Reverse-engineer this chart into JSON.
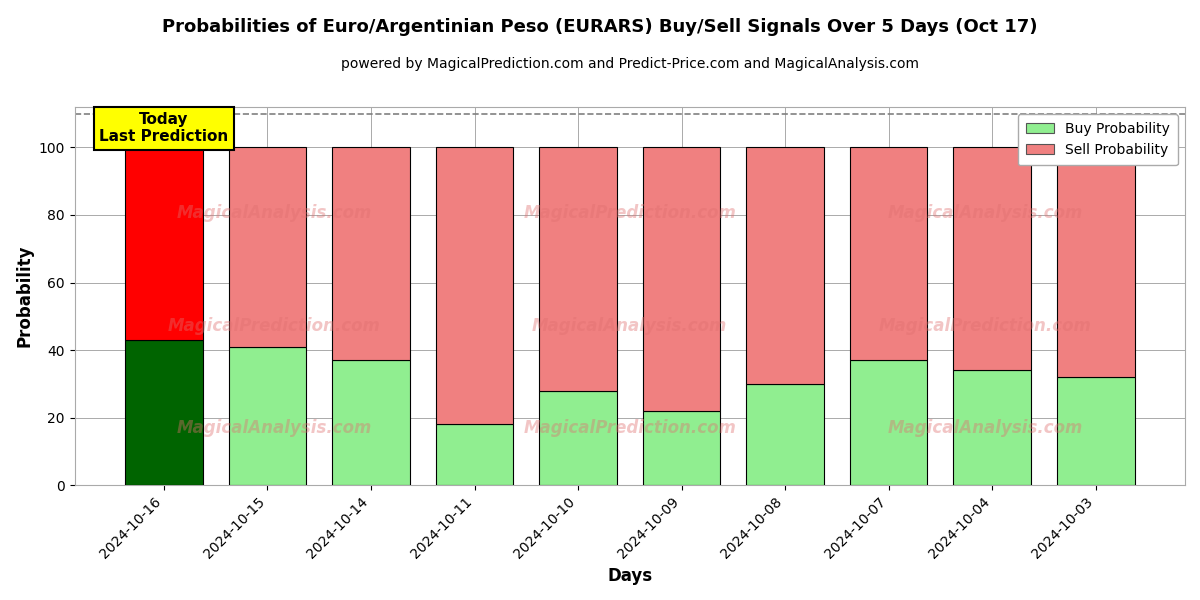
{
  "title": "Probabilities of Euro/Argentinian Peso (EURARS) Buy/Sell Signals Over 5 Days (Oct 17)",
  "subtitle": "powered by MagicalPrediction.com and Predict-Price.com and MagicalAnalysis.com",
  "xlabel": "Days",
  "ylabel": "Probability",
  "dates": [
    "2024-10-16",
    "2024-10-15",
    "2024-10-14",
    "2024-10-11",
    "2024-10-10",
    "2024-10-09",
    "2024-10-08",
    "2024-10-07",
    "2024-10-04",
    "2024-10-03"
  ],
  "buy_values": [
    43,
    41,
    37,
    18,
    28,
    22,
    30,
    37,
    34,
    32
  ],
  "sell_values": [
    57,
    59,
    63,
    82,
    72,
    78,
    70,
    63,
    66,
    68
  ],
  "buy_color_today": "#006400",
  "sell_color_today": "#ff0000",
  "buy_color_rest": "#90ee90",
  "sell_color_rest": "#f08080",
  "bar_edge_color": "#000000",
  "bar_edge_width": 0.8,
  "ylim_max": 112,
  "yticks": [
    0,
    20,
    40,
    60,
    80,
    100
  ],
  "dashed_line_y": 110,
  "dashed_line_color": "#808080",
  "grid_color": "#aaaaaa",
  "legend_buy_color": "#90ee90",
  "legend_sell_color": "#f08080",
  "annotation_text": "Today\nLast Prediction",
  "annotation_facecolor": "#ffff00",
  "annotation_edgecolor": "#000000",
  "watermark_texts": [
    "MagicalAnalysis.com",
    "MagicalPrediction.com"
  ],
  "watermark_color": "#e07070",
  "watermark_alpha": 0.4,
  "bar_width": 0.75
}
